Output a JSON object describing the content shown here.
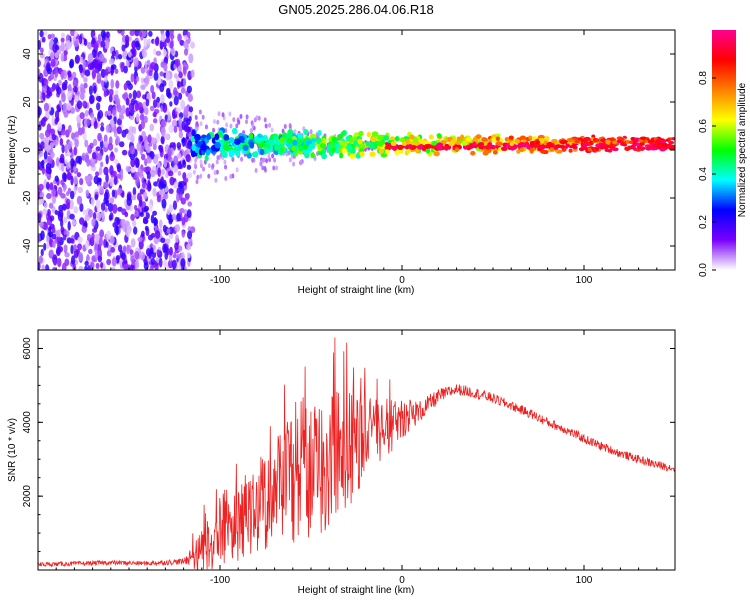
{
  "title": "GN05.2025.286.04.06.R18",
  "chart_data": [
    {
      "type": "heatmap",
      "name": "spectrogram",
      "xlabel": "Height of straight line (km)",
      "ylabel": "Frequency (Hz)",
      "xlim": [
        -200,
        150
      ],
      "ylim": [
        -50,
        50
      ],
      "xticks": [
        -100,
        0,
        100
      ],
      "xtick_labels": [
        "-100",
        "0",
        "100"
      ],
      "yticks": [
        40,
        20,
        0,
        -20,
        -40
      ],
      "ytick_labels": [
        "40",
        "20",
        "0",
        "-20",
        "-40"
      ],
      "noise_region_km": [
        -200,
        -115
      ],
      "signal_band_hz": [
        0,
        5
      ],
      "colorbar": {
        "label": "Normalized spectral amplitude",
        "range": [
          0,
          1
        ],
        "ticks": [
          0.0,
          0.2,
          0.4,
          0.6,
          0.8
        ],
        "tick_labels": [
          "0.0",
          "0.2",
          "0.4",
          "0.6",
          "0.8"
        ],
        "colors": [
          "#ffffff",
          "#7a00ff",
          "#0000ff",
          "#00ffff",
          "#00ff00",
          "#ffff00",
          "#ff7f00",
          "#ff0000",
          "#ff0090"
        ]
      }
    },
    {
      "type": "line",
      "name": "snr",
      "xlabel": "Height of straight line (km)",
      "ylabel": "SNR (10 * v/v)",
      "xlim": [
        -200,
        150
      ],
      "ylim": [
        0,
        6500
      ],
      "xticks": [
        -100,
        0,
        100
      ],
      "xtick_labels": [
        "-100",
        "0",
        "100"
      ],
      "yticks": [
        2000,
        4000,
        6000
      ],
      "ytick_labels": [
        "2000",
        "4000",
        "6000"
      ],
      "color": "#ee2222",
      "x": [
        -200,
        -180,
        -160,
        -140,
        -120,
        -110,
        -100,
        -90,
        -80,
        -70,
        -60,
        -50,
        -40,
        -30,
        -20,
        -10,
        0,
        10,
        20,
        30,
        40,
        50,
        60,
        70,
        80,
        90,
        100,
        110,
        120,
        130,
        140,
        150
      ],
      "y": [
        150,
        170,
        200,
        180,
        230,
        600,
        1200,
        1500,
        1900,
        2300,
        2600,
        2900,
        3200,
        3400,
        3700,
        3900,
        4100,
        4300,
        4700,
        4900,
        4800,
        4650,
        4450,
        4250,
        4000,
        3800,
        3550,
        3350,
        3150,
        3000,
        2850,
        2750
      ],
      "spread": [
        60,
        60,
        60,
        60,
        80,
        500,
        900,
        1000,
        1100,
        1300,
        1500,
        1600,
        1600,
        1500,
        1000,
        700,
        500,
        300,
        200,
        150,
        150,
        140,
        130,
        130,
        130,
        120,
        120,
        120,
        110,
        110,
        110,
        110
      ]
    }
  ]
}
